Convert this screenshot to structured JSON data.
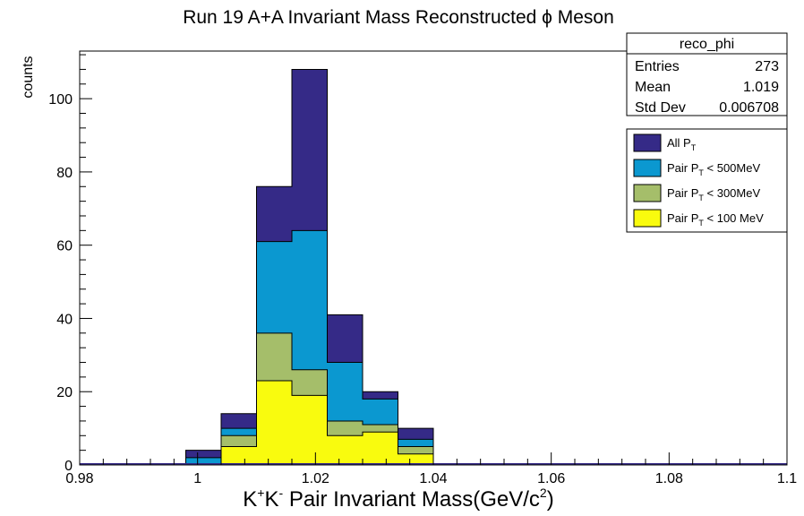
{
  "chart_data": {
    "type": "bar",
    "title": "Run 19 A+A Invariant Mass Reconstructed ϕ Meson",
    "xlabel_parts": [
      "K",
      "+",
      "K",
      "-",
      " Pair Invariant Mass(GeV/c",
      "2",
      ")"
    ],
    "ylabel": "counts",
    "xlim": [
      0.98,
      1.1
    ],
    "ylim": [
      0,
      113
    ],
    "x_ticks": [
      "0.98",
      "1",
      "1.02",
      "1.04",
      "1.06",
      "1.08",
      "1.1"
    ],
    "y_ticks": [
      "0",
      "20",
      "40",
      "60",
      "80",
      "100"
    ],
    "bin_edges": [
      0.998,
      1.004,
      1.01,
      1.016,
      1.022,
      1.028,
      1.034,
      1.04
    ],
    "series": [
      {
        "name": "All",
        "sub": "T",
        "label_prefix": "All P",
        "label_suffix": "",
        "color": "#352a87",
        "values": [
          4,
          14,
          76,
          108,
          41,
          20,
          10
        ]
      },
      {
        "name": "Pair PT < 500MeV",
        "label_prefix": "Pair P",
        "sub": "T",
        "label_suffix": " < 500MeV",
        "color": "#0b98d0",
        "values": [
          2,
          10,
          61,
          64,
          28,
          18,
          7
        ]
      },
      {
        "name": "Pair PT < 300MeV",
        "label_prefix": "Pair P",
        "sub": "T",
        "label_suffix": " < 300MeV",
        "color": "#a5be6a",
        "values": [
          0,
          8,
          36,
          26,
          12,
          11,
          5
        ]
      },
      {
        "name": "Pair PT < 100 MeV",
        "label_prefix": "Pair P",
        "sub": "T",
        "label_suffix": " < 100 MeV",
        "color": "#f9fb0e",
        "values": [
          0,
          5,
          23,
          19,
          8,
          9,
          3
        ]
      }
    ],
    "stats": {
      "name": "reco_phi",
      "rows": [
        {
          "label": "Entries",
          "value": "273"
        },
        {
          "label": "Mean",
          "value": "1.019"
        },
        {
          "label": "Std Dev",
          "value": "0.006708"
        }
      ]
    },
    "legend_position": "top-right",
    "grid": false
  }
}
